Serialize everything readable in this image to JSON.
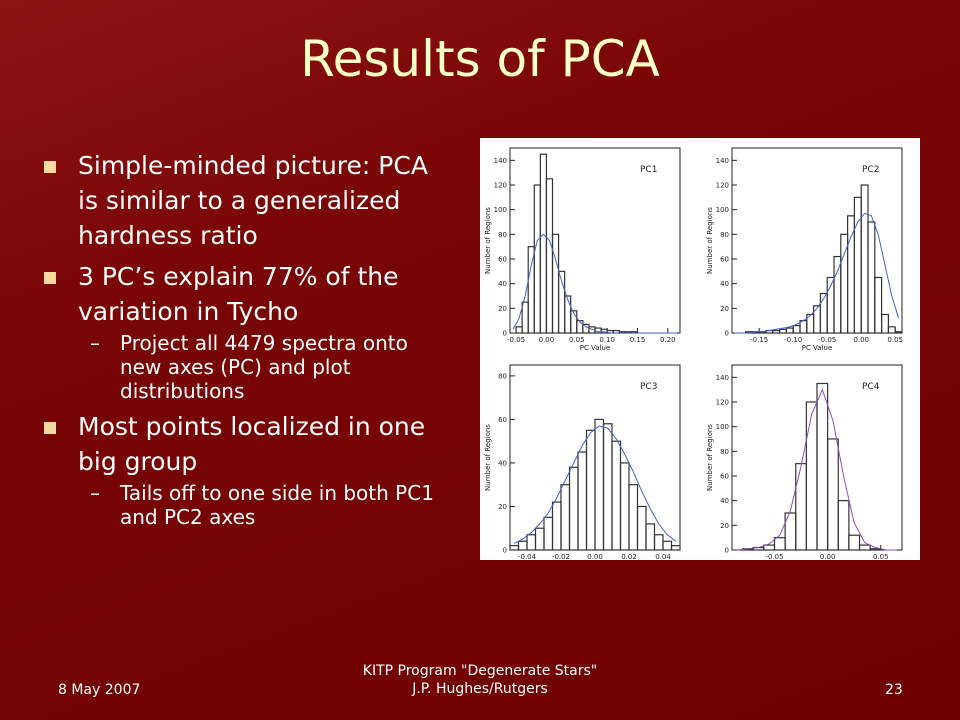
{
  "header": {
    "title": "Results of PCA"
  },
  "bullets": [
    {
      "level": 1,
      "text": "Simple-minded picture: PCA is similar to a generalized hardness ratio"
    },
    {
      "level": 1,
      "text": "3 PC’s explain 77% of the variation in Tycho"
    },
    {
      "level": 2,
      "text": "Project all 4479 spectra onto new axes (PC) and plot distributions"
    },
    {
      "level": 1,
      "text": "Most points localized in one big group"
    },
    {
      "level": 2,
      "text": "Tails off to one side in both PC1 and PC2 axes"
    }
  ],
  "footer": {
    "date": "8 May 2007",
    "center": [
      "KITP Program \"Degenerate Stars\"",
      "J.P. Hughes/Rutgers"
    ],
    "page": "23"
  },
  "chart_data": [
    {
      "type": "histogram",
      "title": "PC1",
      "x_label": "PC Value",
      "y_label": "Number of Regions",
      "xlim": [
        -0.06,
        0.22
      ],
      "ylim": [
        0,
        150
      ],
      "xticks": [
        {
          "value": -0.05,
          "label": "-0.05"
        },
        {
          "value": 0,
          "label": "0.00"
        },
        {
          "value": 0.05,
          "label": "0.05"
        },
        {
          "value": 0.1,
          "label": "0.10"
        },
        {
          "value": 0.15,
          "label": "0.15"
        },
        {
          "value": 0.2,
          "label": "0.20"
        }
      ],
      "yticks": [
        0,
        20,
        40,
        60,
        80,
        100,
        120,
        140
      ],
      "bins": [
        -0.06,
        -0.05,
        -0.04,
        -0.03,
        -0.02,
        -0.01,
        0,
        0.01,
        0.02,
        0.03,
        0.04,
        0.05,
        0.06,
        0.07,
        0.08,
        0.09,
        0.1,
        0.11,
        0.12,
        0.13,
        0.14,
        0.15,
        0.16,
        0.17,
        0.18,
        0.19,
        0.2,
        0.21,
        0.22
      ],
      "counts": [
        0,
        5,
        25,
        70,
        120,
        145,
        125,
        80,
        50,
        30,
        18,
        10,
        7,
        5,
        4,
        3,
        2,
        2,
        1,
        1,
        1,
        0,
        0,
        0,
        0,
        0,
        0,
        0
      ],
      "fit": [
        3,
        12,
        30,
        55,
        75,
        80,
        75,
        60,
        42,
        27,
        16,
        9,
        5,
        3,
        1,
        1,
        0,
        0,
        0,
        0,
        0,
        0,
        0,
        0,
        0,
        0,
        0,
        0
      ],
      "color": "#333333",
      "fit_color": "#4a5fd0"
    },
    {
      "type": "histogram",
      "title": "PC2",
      "x_label": "PC Value",
      "y_label": "Number of Regions",
      "xlim": [
        -0.19,
        0.06
      ],
      "ylim": [
        0,
        150
      ],
      "xticks": [
        {
          "value": -0.15,
          "label": "-0.15"
        },
        {
          "value": -0.1,
          "label": "-0.10"
        },
        {
          "value": -0.05,
          "label": "-0.05"
        },
        {
          "value": 0,
          "label": "0.00"
        },
        {
          "value": 0.05,
          "label": "0.05"
        }
      ],
      "yticks": [
        0,
        20,
        40,
        60,
        80,
        100,
        120,
        140
      ],
      "bins": [
        -0.19,
        -0.18,
        -0.17,
        -0.16,
        -0.15,
        -0.14,
        -0.13,
        -0.12,
        -0.11,
        -0.1,
        -0.09,
        -0.08,
        -0.07,
        -0.06,
        -0.05,
        -0.04,
        -0.03,
        -0.02,
        -0.01,
        0,
        0.01,
        0.02,
        0.03,
        0.04,
        0.05,
        0.06
      ],
      "counts": [
        0,
        0,
        1,
        1,
        1,
        2,
        2,
        3,
        4,
        6,
        10,
        15,
        22,
        32,
        45,
        62,
        80,
        95,
        110,
        120,
        90,
        45,
        15,
        5,
        1
      ],
      "fit": [
        0,
        0,
        0,
        1,
        1,
        2,
        3,
        4,
        5,
        7,
        10,
        14,
        20,
        28,
        38,
        50,
        64,
        78,
        90,
        97,
        95,
        80,
        55,
        30,
        12
      ],
      "color": "#333333",
      "fit_color": "#4a5fd0"
    },
    {
      "type": "histogram",
      "title": "PC3",
      "x_label": "PC Value",
      "y_label": "Number of Regions",
      "xlim": [
        -0.05,
        0.05
      ],
      "ylim": [
        0,
        85
      ],
      "xticks": [
        {
          "value": -0.04,
          "label": "-0.04"
        },
        {
          "value": -0.02,
          "label": "-0.02"
        },
        {
          "value": 0,
          "label": "0.00"
        },
        {
          "value": 0.02,
          "label": "0.02"
        },
        {
          "value": 0.04,
          "label": "0.04"
        }
      ],
      "yticks": [
        0,
        20,
        40,
        60,
        80
      ],
      "bins": [
        -0.05,
        -0.045,
        -0.04,
        -0.035,
        -0.03,
        -0.025,
        -0.02,
        -0.015,
        -0.01,
        -0.005,
        0,
        0.005,
        0.01,
        0.015,
        0.02,
        0.025,
        0.03,
        0.035,
        0.04,
        0.045,
        0.05
      ],
      "counts": [
        2,
        4,
        7,
        10,
        15,
        22,
        30,
        38,
        45,
        55,
        60,
        58,
        50,
        40,
        30,
        20,
        12,
        7,
        4,
        2
      ],
      "fit": [
        3,
        5,
        8,
        12,
        17,
        24,
        32,
        40,
        48,
        54,
        57,
        56,
        51,
        44,
        36,
        27,
        19,
        12,
        7,
        4
      ],
      "color": "#333333",
      "fit_color": "#4a5fd0"
    },
    {
      "type": "histogram",
      "title": "PC4",
      "x_label": "PC Value",
      "y_label": "Number of Regions",
      "xlim": [
        -0.09,
        0.07
      ],
      "ylim": [
        0,
        150
      ],
      "xticks": [
        {
          "value": -0.05,
          "label": "-0.05"
        },
        {
          "value": 0,
          "label": "0.00"
        },
        {
          "value": 0.05,
          "label": "0.05"
        }
      ],
      "yticks": [
        0,
        20,
        40,
        60,
        80,
        100,
        120,
        140
      ],
      "bins": [
        -0.09,
        -0.08,
        -0.07,
        -0.06,
        -0.05,
        -0.04,
        -0.03,
        -0.02,
        -0.01,
        0,
        0.01,
        0.02,
        0.03,
        0.04,
        0.05,
        0.06,
        0.07
      ],
      "counts": [
        0,
        1,
        2,
        4,
        10,
        30,
        70,
        120,
        135,
        90,
        40,
        12,
        4,
        1,
        0,
        0
      ],
      "fit": [
        0,
        1,
        2,
        5,
        12,
        32,
        68,
        110,
        130,
        105,
        60,
        22,
        6,
        2,
        0,
        0
      ],
      "color": "#333333",
      "fit_color": "#8a4fc0"
    }
  ]
}
